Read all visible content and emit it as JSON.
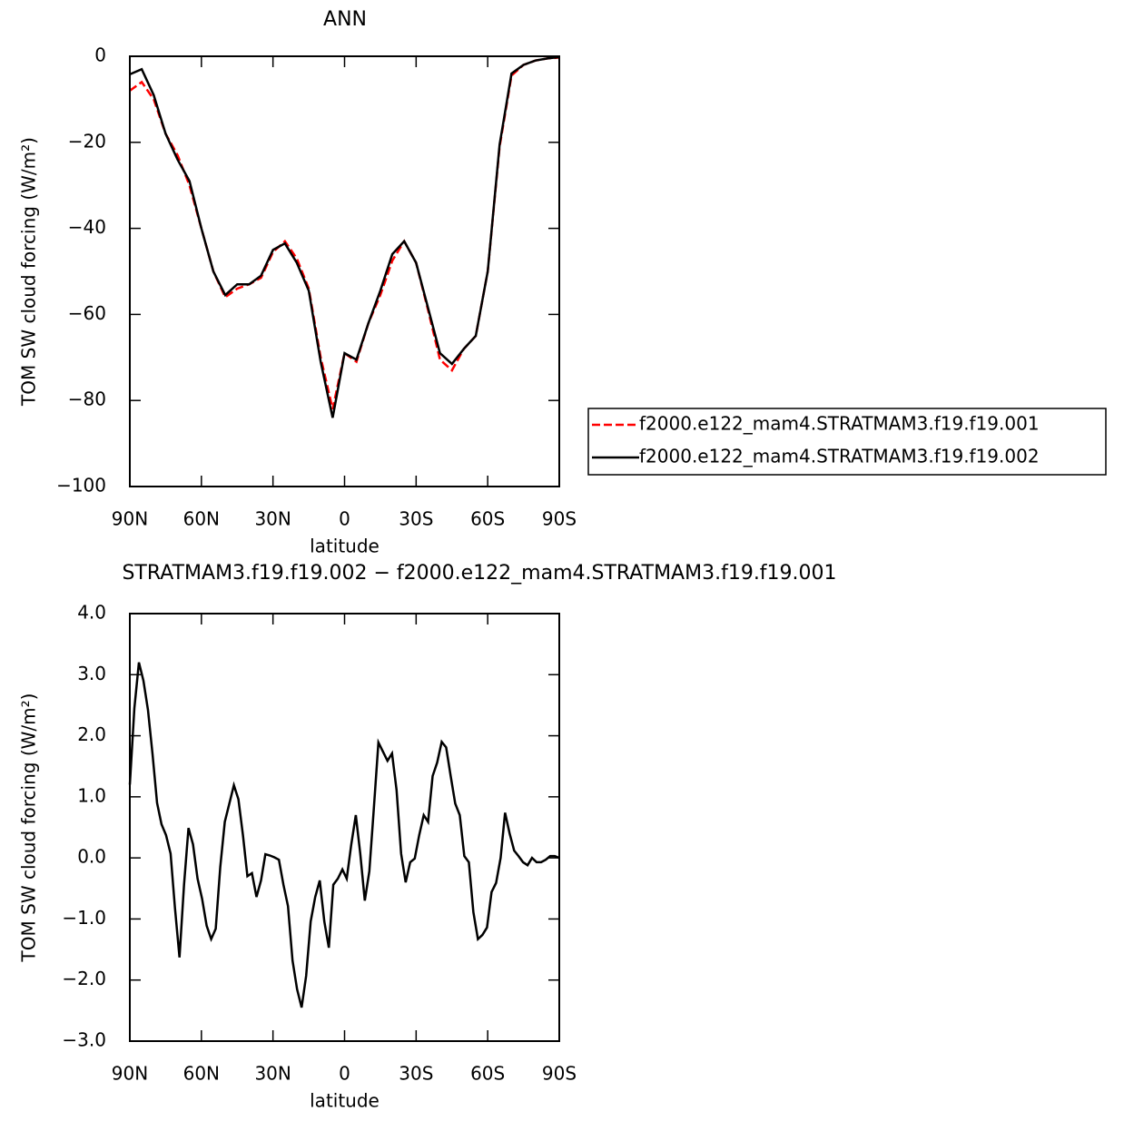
{
  "chart_data": [
    {
      "type": "line",
      "title": "ANN",
      "xlabel": "latitude",
      "ylabel": "TOM SW cloud forcing (W/m²)",
      "x": [
        90,
        85,
        80,
        75,
        70,
        65,
        60,
        55,
        50,
        45,
        40,
        35,
        30,
        25,
        20,
        15,
        10,
        5,
        0,
        -5,
        -10,
        -15,
        -20,
        -25,
        -30,
        -35,
        -40,
        -45,
        -50,
        -55,
        -60,
        -65,
        -70,
        -75,
        -80,
        -85,
        -90
      ],
      "series": [
        {
          "name": "f2000.e122_mam4.STRATMAM3.f19.f19.001",
          "color": "#ff0000",
          "style": "dashed",
          "values": [
            -8,
            -6,
            -10,
            -18,
            -23,
            -30,
            -40,
            -50,
            -56,
            -54,
            -53,
            -51.5,
            -45.5,
            -43,
            -47,
            -54,
            -70,
            -82,
            -69,
            -71,
            -62,
            -55.5,
            -47.5,
            -43,
            -48,
            -59,
            -70.5,
            -73,
            -68,
            -65,
            -50,
            -21,
            -4.5,
            -2,
            -1,
            -0.5,
            -0.3
          ]
        },
        {
          "name": "f2000.e122_mam4.STRATMAM3.f19.f19.002",
          "color": "#000000",
          "style": "solid",
          "values": [
            -4.2,
            -3,
            -9,
            -18,
            -24,
            -29,
            -40,
            -50,
            -55.5,
            -53,
            -53,
            -51,
            -45,
            -43.5,
            -48,
            -54.5,
            -71,
            -84,
            -69,
            -70.5,
            -62,
            -54.5,
            -46,
            -43,
            -48,
            -58.5,
            -69,
            -71.5,
            -68,
            -65,
            -50,
            -20.5,
            -4,
            -2,
            -1,
            -0.5,
            -0.2
          ]
        }
      ],
      "xlim": [
        90,
        -90
      ],
      "xticks": [
        {
          "value": 90,
          "label": "90N"
        },
        {
          "value": 60,
          "label": "60N"
        },
        {
          "value": 30,
          "label": "30N"
        },
        0,
        {
          "value": -30,
          "label": "30S"
        },
        {
          "value": -60,
          "label": "60S"
        },
        {
          "value": -90,
          "label": "90S"
        }
      ],
      "ylim": [
        -100,
        0
      ],
      "yticks": [
        0,
        {
          "value": -20,
          "label": "−20"
        },
        {
          "value": -40,
          "label": "−40"
        },
        {
          "value": -60,
          "label": "−60"
        },
        {
          "value": -80,
          "label": "−80"
        },
        {
          "value": -100,
          "label": "−100"
        }
      ],
      "legend": "right"
    },
    {
      "type": "line",
      "title": "STRATMAM3.f19.f19.002 − f2000.e122_mam4.STRATMAM3.f19.f19.001",
      "xlabel": "latitude",
      "ylabel": "TOM SW cloud forcing (W/m²)",
      "x": [
        90,
        88.1,
        86.2,
        84.3,
        82.4,
        80.5,
        78.6,
        76.7,
        74.8,
        72.9,
        71.1,
        69.2,
        67.3,
        65.4,
        63.5,
        61.6,
        59.7,
        57.8,
        55.9,
        54.0,
        52.1,
        50.2,
        48.3,
        46.4,
        44.5,
        42.6,
        40.7,
        38.8,
        36.9,
        35.0,
        33.2,
        31.3,
        29.4,
        27.5,
        25.6,
        23.7,
        21.8,
        19.9,
        18.0,
        16.1,
        14.2,
        12.3,
        10.4,
        8.5,
        6.6,
        4.7,
        2.8,
        0.9,
        -0.9,
        -2.8,
        -4.7,
        -6.6,
        -8.5,
        -10.4,
        -12.3,
        -14.2,
        -16.1,
        -18.0,
        -19.9,
        -21.8,
        -23.7,
        -25.6,
        -27.5,
        -29.4,
        -31.3,
        -33.2,
        -35.0,
        -36.9,
        -38.8,
        -40.7,
        -42.6,
        -44.5,
        -46.4,
        -48.3,
        -50.2,
        -52.1,
        -54.0,
        -55.9,
        -57.8,
        -59.7,
        -61.6,
        -63.5,
        -65.4,
        -67.3,
        -69.2,
        -71.1,
        -72.9,
        -74.8,
        -76.7,
        -78.6,
        -80.5,
        -82.4,
        -84.3,
        -86.2,
        -88.1,
        -90
      ],
      "series": [
        {
          "color": "#000000",
          "style": "solid",
          "values": [
            1.2,
            2.45,
            3.2,
            2.9,
            2.42,
            1.7,
            0.9,
            0.55,
            0.37,
            0.07,
            -0.82,
            -1.63,
            -0.44,
            0.49,
            0.22,
            -0.34,
            -0.67,
            -1.11,
            -1.33,
            -1.16,
            -0.15,
            0.59,
            0.89,
            1.19,
            0.96,
            0.37,
            -0.3,
            -0.25,
            -0.64,
            -0.37,
            0.06,
            0.04,
            0.01,
            -0.03,
            -0.44,
            -0.79,
            -1.68,
            -2.15,
            -2.45,
            -1.93,
            -1.04,
            -0.64,
            -0.37,
            -1.04,
            -1.47,
            -0.44,
            -0.34,
            -0.19,
            -0.34,
            0.22,
            0.7,
            0.07,
            -0.7,
            -0.22,
            0.82,
            1.89,
            1.74,
            1.59,
            1.71,
            1.11,
            0.07,
            -0.4,
            -0.07,
            -0.01,
            0.37,
            0.7,
            0.59,
            1.34,
            1.56,
            1.9,
            1.81,
            1.34,
            0.89,
            0.7,
            0.03,
            -0.07,
            -0.89,
            -1.33,
            -1.26,
            -1.14,
            -0.56,
            -0.41,
            0,
            0.74,
            0.4,
            0.12,
            0.03,
            -0.07,
            -0.12,
            0,
            -0.07,
            -0.07,
            -0.03,
            0.03,
            0.03,
            0
          ]
        }
      ],
      "xlim": [
        90,
        -90
      ],
      "xticks": [
        {
          "value": 90,
          "label": "90N"
        },
        {
          "value": 60,
          "label": "60N"
        },
        {
          "value": 30,
          "label": "30N"
        },
        0,
        {
          "value": -30,
          "label": "30S"
        },
        {
          "value": -60,
          "label": "60S"
        },
        {
          "value": -90,
          "label": "90S"
        }
      ],
      "ylim": [
        -3,
        4
      ],
      "yticks": [
        {
          "value": 4,
          "label": "4.0"
        },
        {
          "value": 3,
          "label": "3.0"
        },
        {
          "value": 2,
          "label": "2.0"
        },
        {
          "value": 1,
          "label": "1.0"
        },
        {
          "value": 0,
          "label": "0.0"
        },
        {
          "value": -1,
          "label": "−1.0"
        },
        {
          "value": -2,
          "label": "−2.0"
        },
        {
          "value": -3,
          "label": "−3.0"
        }
      ]
    }
  ]
}
